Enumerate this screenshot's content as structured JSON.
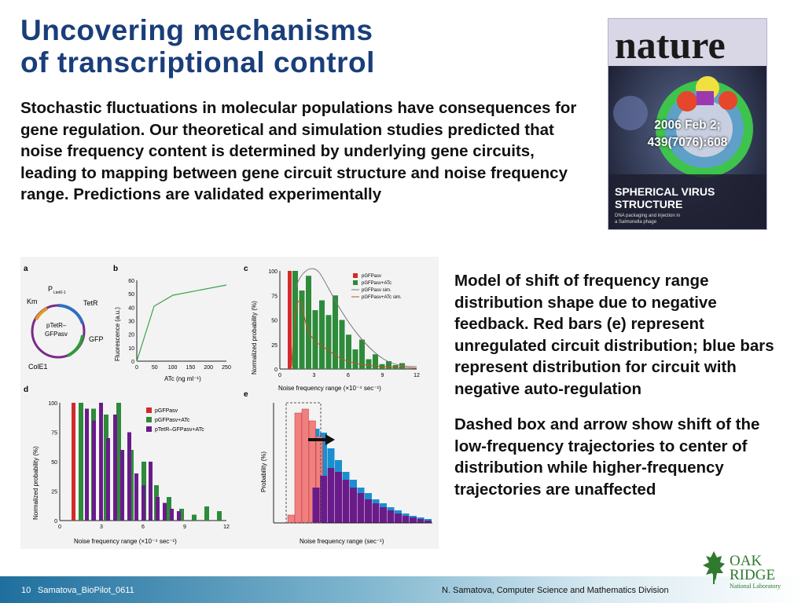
{
  "title": {
    "line1": "Uncovering mechanisms",
    "line2": "of transcriptional control"
  },
  "intro": "Stochastic fluctuations in molecular populations have consequences for gene regulation. Our theoretical and simulation studies predicted that noise frequency content is determined by underlying gene circuits, leading to mapping between gene circuit structure and noise frequency range. Predictions are validated experimentally",
  "cover": {
    "masthead": "nature",
    "citation_line1": "2006 Feb 2;",
    "citation_line2": "439(7076):608",
    "headline_line1": "SPHERICAL VIRUS",
    "headline_line2": "STRUCTURE",
    "subhead_line1": "DNA packaging and injection in",
    "subhead_line2": "a Salmonella phage"
  },
  "figure": {
    "panel_a": {
      "letter": "a",
      "labels": {
        "promoter": "P",
        "promoter_sub": "Ltet0-1",
        "km": "Km",
        "tetr": "TetR",
        "center1": "pTetR–",
        "center2": "GFPasv",
        "gfp": "GFP",
        "cole1": "ColE1"
      }
    },
    "panel_b": {
      "letter": "b",
      "ylabel": "Fluorescence (a.u.)",
      "xlabel": "ATc (ng ml⁻¹)",
      "yticks": [
        "0",
        "10",
        "20",
        "30",
        "40",
        "50",
        "60"
      ],
      "xticks": [
        "0",
        "50",
        "100",
        "150",
        "200",
        "250"
      ]
    },
    "panel_c": {
      "letter": "c",
      "ylabel": "Normalized probability (%)",
      "xlabel": "Noise frequency range (×10⁻⁴ sec⁻¹)",
      "yticks": [
        "0",
        "25",
        "50",
        "75",
        "100"
      ],
      "xticks": [
        "0",
        "3",
        "6",
        "9",
        "12"
      ],
      "legend": [
        "pGFPasv",
        "pGFPasv+ATc",
        "pGFPasv sim.",
        "pGFPasv+ATc sim."
      ]
    },
    "panel_d": {
      "letter": "d",
      "ylabel": "Normalized probability (%)",
      "xlabel": "Noise frequency range (×10⁻⁴ sec⁻¹)",
      "yticks": [
        "0",
        "25",
        "50",
        "75",
        "100"
      ],
      "xticks": [
        "0",
        "3",
        "6",
        "9",
        "12"
      ],
      "legend": [
        "pGFPasv",
        "pGFPasv+ATc",
        "pTetR–GFPasv+ATc"
      ]
    },
    "panel_e": {
      "letter": "e",
      "ylabel": "Probability (%)",
      "xlabel": "Noise frequency range (sec⁻¹)"
    }
  },
  "right_text": {
    "p1": "Model of shift of frequency range distribution shape due to negative feedback. Red bars (e) represent unregulated circuit distribution; blue bars represent distribution for circuit with negative auto-regulation",
    "p2": "Dashed box and arrow show shift of the low-frequency trajectories to center of distribution while higher-frequency trajectories are unaffected"
  },
  "footer": {
    "page": "10",
    "filename": "Samatova_BioPilot_0611",
    "division": "N. Samatova, Computer Science and Mathematics Division"
  },
  "logo": {
    "line1": "OAK",
    "line2": "RIDGE",
    "line3": "National Laboratory"
  },
  "colors": {
    "title": "#1a3e7a",
    "red": "#d42a2a",
    "green": "#2e8b3a",
    "purple": "#6a1b8a",
    "blue": "#1a8fd0",
    "salmon": "#f08080"
  }
}
